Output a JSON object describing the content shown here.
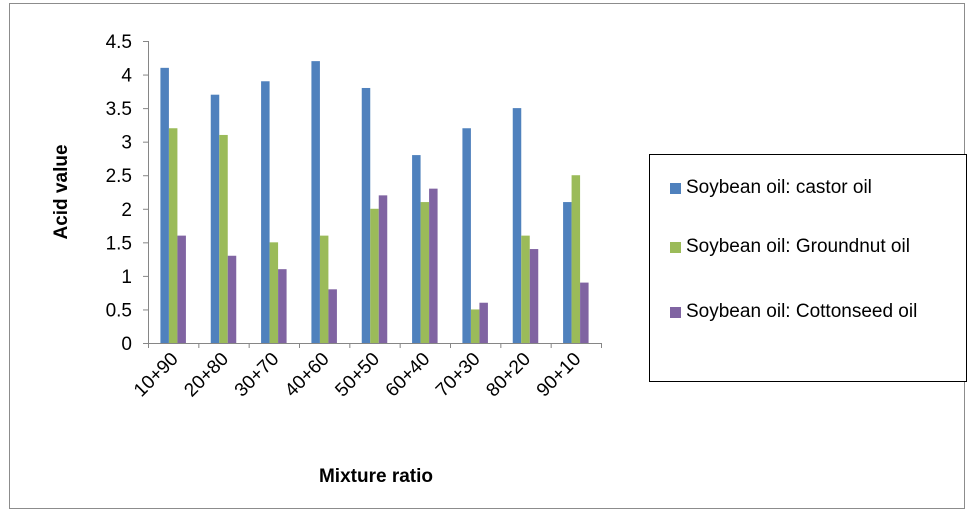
{
  "chart_data": {
    "type": "bar",
    "title": "",
    "xlabel": "Mixture ratio",
    "ylabel": "Acid value",
    "ylim": [
      0,
      4.5
    ],
    "yticks": [
      "0",
      "0.5",
      "1",
      "1.5",
      "2",
      "2.5",
      "3",
      "3.5",
      "4",
      "4.5"
    ],
    "categories": [
      "10+90",
      "20+80",
      "30+70",
      "40+60",
      "50+50",
      "60+40",
      "70+30",
      "80+20",
      "90+10"
    ],
    "series": [
      {
        "name": "Soybean oil: castor oil",
        "color": "#4f81bd",
        "values": [
          4.1,
          3.7,
          3.9,
          4.2,
          3.8,
          2.8,
          3.2,
          3.5,
          2.1
        ]
      },
      {
        "name": "Soybean oil: Groundnut oil",
        "color": "#9bbb59",
        "values": [
          3.2,
          3.1,
          1.5,
          1.6,
          2.0,
          2.1,
          0.5,
          1.6,
          2.5
        ]
      },
      {
        "name": "Soybean oil: Cottonseed oil",
        "color": "#8064a2",
        "values": [
          1.6,
          1.3,
          1.1,
          0.8,
          2.2,
          2.3,
          0.6,
          1.4,
          0.9
        ]
      }
    ],
    "grid": false,
    "legend": "right"
  }
}
